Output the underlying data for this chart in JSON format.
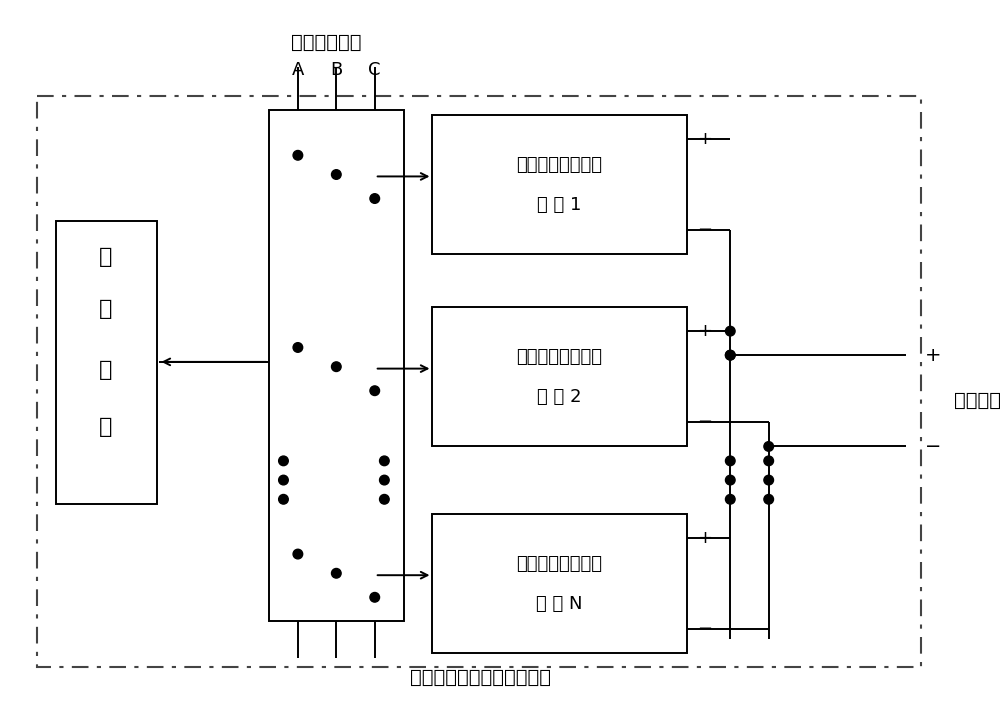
{
  "title": "工业电解制氟高频开关电源",
  "top_label": "三相交流输入",
  "abc_labels": [
    "A",
    "B",
    "C"
  ],
  "dc_output_label": "直流输出",
  "monitor_chars": [
    "监",
    "控",
    "系",
    "统"
  ],
  "module_line1": [
    "直流高频开关电源",
    "直流高频开关电源",
    "直流高频开关电源"
  ],
  "module_line2": [
    "模 块 1",
    "模 块 2",
    "模 块 N"
  ],
  "bg_color": "#ffffff",
  "lc": "#000000",
  "dash_lc": "#555555"
}
